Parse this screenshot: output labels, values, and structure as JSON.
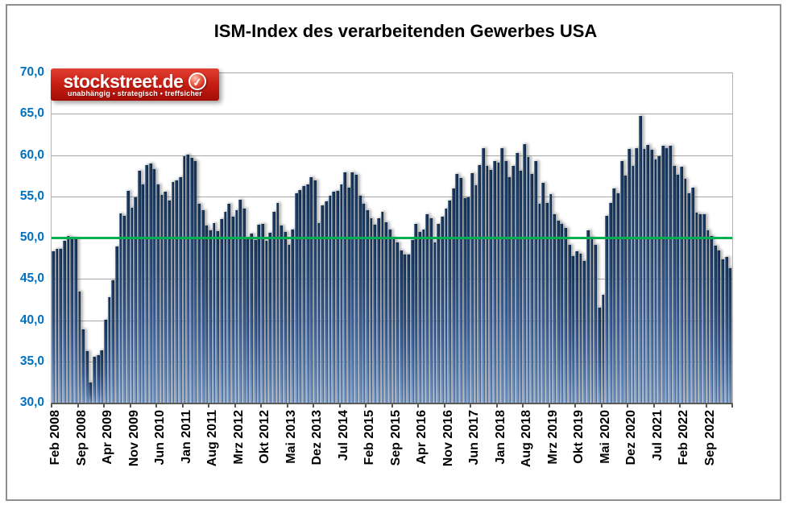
{
  "title": "ISM-Index des verarbeitenden Gewerbes USA",
  "logo": {
    "brand": "stockstreet.de",
    "tagline": "unabhängig • strategisch • treffsicher",
    "badge_icon": "check-icon",
    "bg_color": "#c92014",
    "text_color": "#ffffff"
  },
  "chart_data": {
    "type": "bar",
    "title": "ISM-Index des verarbeitenden Gewerbes USA",
    "xlabel": "",
    "ylabel": "",
    "ylim": [
      30,
      70
    ],
    "grid": true,
    "legend": "none",
    "y_tick_labels": [
      "70,0",
      "65,0",
      "60,0",
      "55,0",
      "50,0",
      "45,0",
      "40,0",
      "35,0",
      "30,0"
    ],
    "y_axis_label_color": "#0070c0",
    "reference_line": {
      "value": 50.0,
      "color": "#00b050"
    },
    "bar_color_top": "#16355b",
    "bar_color_bottom": "#7d9ecb",
    "x_start": "Feb 2008",
    "months_per_tick": 7,
    "tick_labels": [
      "Feb 2008",
      "Sep 2008",
      "Apr 2009",
      "Nov 2009",
      "Jun 2010",
      "Jan 2011",
      "Aug 2011",
      "Mrz 2012",
      "Okt 2012",
      "Mai 2013",
      "Dez 2013",
      "Jul 2014",
      "Feb 2015",
      "Sep 2015",
      "Apr 2016",
      "Nov 2016",
      "Jun 2017",
      "Jan 2018",
      "Aug 2018",
      "Mrz 2019",
      "Okt 2019",
      "Mai 2020",
      "Dez 2020",
      "Jul 2021",
      "Feb 2022",
      "Sep 2022"
    ],
    "values": [
      48.3,
      48.6,
      48.6,
      49.6,
      50.2,
      50.0,
      49.9,
      43.5,
      38.9,
      36.2,
      32.4,
      35.6,
      35.8,
      36.3,
      40.1,
      42.8,
      44.8,
      48.9,
      52.9,
      52.6,
      55.7,
      53.6,
      54.9,
      58.1,
      56.4,
      58.8,
      59.0,
      58.3,
      56.4,
      55.2,
      55.6,
      54.5,
      56.7,
      56.9,
      57.3,
      59.9,
      60.1,
      59.7,
      59.3,
      54.1,
      53.3,
      51.5,
      50.9,
      51.8,
      50.8,
      52.2,
      53.1,
      54.1,
      52.5,
      53.3,
      54.6,
      53.5,
      49.9,
      50.5,
      49.7,
      51.6,
      51.7,
      49.6,
      50.6,
      53.1,
      54.2,
      51.5,
      50.7,
      49.1,
      51.0,
      55.4,
      55.8,
      56.2,
      56.4,
      57.3,
      56.9,
      51.8,
      53.9,
      54.4,
      55.1,
      55.6,
      55.7,
      56.4,
      57.9,
      56.1,
      57.9,
      57.6,
      55.1,
      54.1,
      53.3,
      52.3,
      51.6,
      52.3,
      53.1,
      51.9,
      51.0,
      50.0,
      49.4,
      48.4,
      48.0,
      48.0,
      49.7,
      51.7,
      50.7,
      51.0,
      52.8,
      52.3,
      49.4,
      51.7,
      52.5,
      53.5,
      54.5,
      56.0,
      57.7,
      57.2,
      54.8,
      54.9,
      57.8,
      56.3,
      58.8,
      60.8,
      58.7,
      58.2,
      59.3,
      59.1,
      60.8,
      59.3,
      57.3,
      58.7,
      60.2,
      58.1,
      61.3,
      59.8,
      57.7,
      59.3,
      54.1,
      56.6,
      54.2,
      55.3,
      52.8,
      52.1,
      51.7,
      51.2,
      49.1,
      47.8,
      48.3,
      48.1,
      47.2,
      50.9,
      50.1,
      49.1,
      41.5,
      43.1,
      52.6,
      54.2,
      56.0,
      55.4,
      59.3,
      57.5,
      60.7,
      58.7,
      60.8,
      64.7,
      60.7,
      61.2,
      60.6,
      59.5,
      59.9,
      61.1,
      60.8,
      61.1,
      58.7,
      57.6,
      58.6,
      57.1,
      55.4,
      56.1,
      53.0,
      52.8,
      52.8,
      50.9,
      50.2,
      49.0,
      48.4,
      47.4,
      47.7,
      46.3
    ]
  }
}
